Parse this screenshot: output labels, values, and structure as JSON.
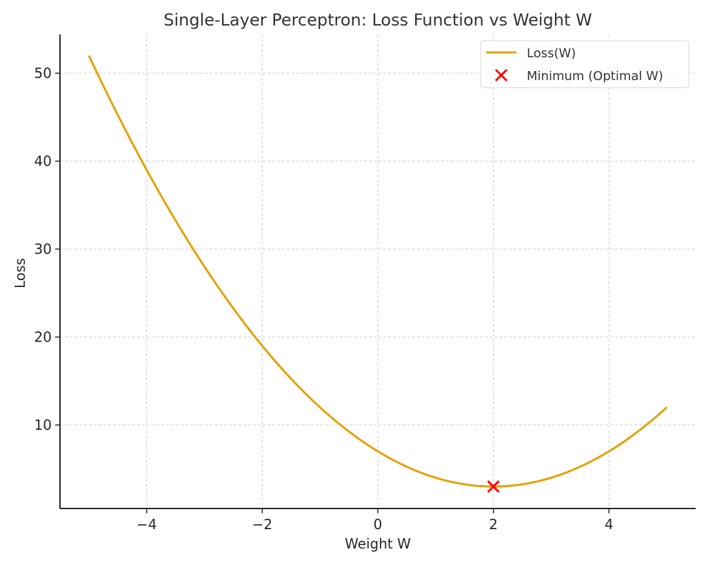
{
  "chart_data": {
    "type": "line",
    "title": "Single-Layer Perceptron: Loss Function vs Weight W",
    "xlabel": "Weight W",
    "ylabel": "Loss",
    "xlim": [
      -5.5,
      5.5
    ],
    "ylim": [
      0.5,
      54.4
    ],
    "xticks": [
      -4,
      -2,
      0,
      2,
      4
    ],
    "xtick_labels": [
      "−4",
      "−2",
      "0",
      "2",
      "4"
    ],
    "yticks": [
      10,
      20,
      30,
      40,
      50
    ],
    "ytick_labels": [
      "10",
      "20",
      "30",
      "40",
      "50"
    ],
    "grid": true,
    "legend_position": "top-right",
    "series": [
      {
        "name": "Loss(W)",
        "kind": "line",
        "color": "#E69F00",
        "formula": "(W-2)^2 + 3",
        "x": [
          -5,
          -4.5,
          -4,
          -3.5,
          -3,
          -2.5,
          -2,
          -1.5,
          -1,
          -0.5,
          0,
          0.5,
          1,
          1.5,
          2,
          2.5,
          3,
          3.5,
          4,
          4.5,
          5
        ],
        "y": [
          52,
          45.25,
          39,
          33.25,
          28,
          23.25,
          19,
          15.25,
          12,
          9.25,
          7,
          5.25,
          4,
          3.25,
          3,
          3.25,
          4,
          5.25,
          7,
          9.25,
          12
        ]
      },
      {
        "name": "Minimum (Optimal W)",
        "kind": "scatter",
        "marker": "x",
        "color": "#FF0000",
        "x": [
          2
        ],
        "y": [
          3
        ]
      }
    ]
  }
}
